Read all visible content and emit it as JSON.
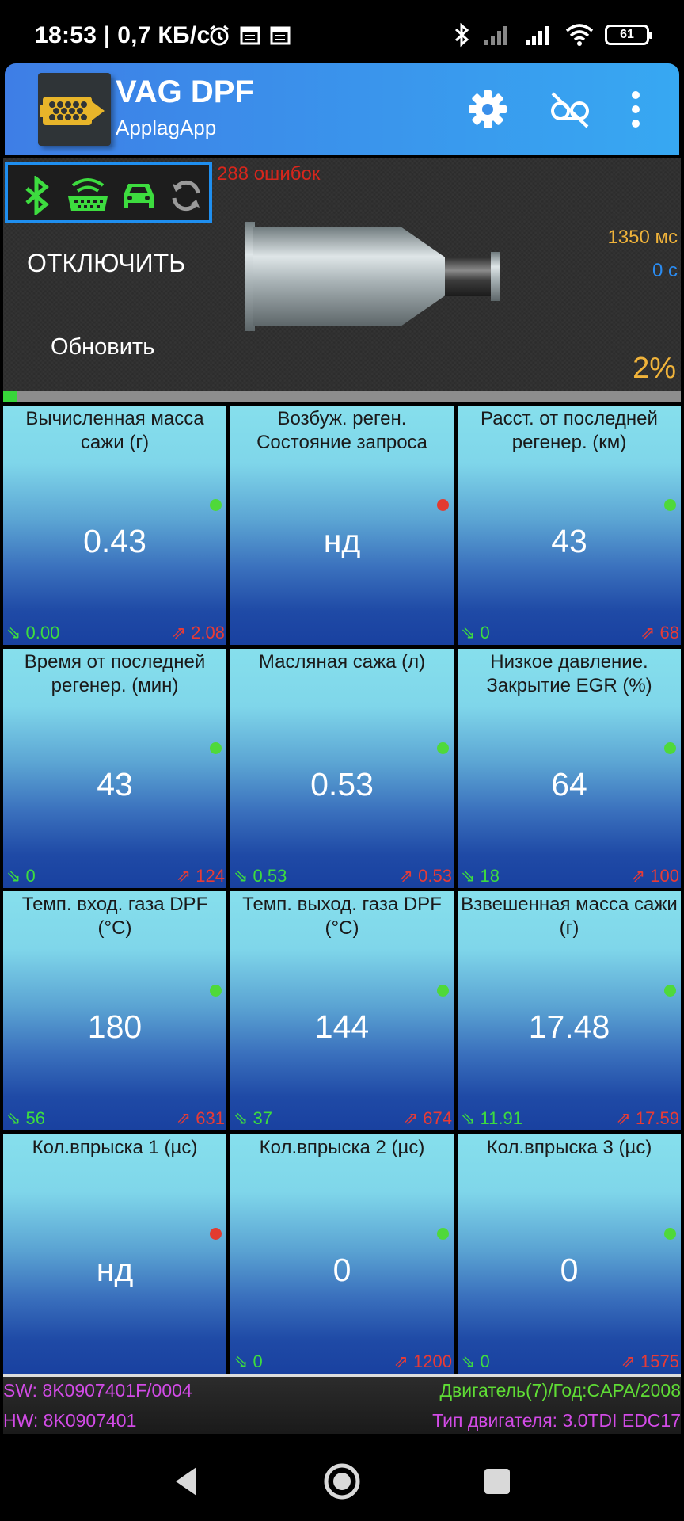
{
  "status_bar": {
    "time": "18:53 | 0,7 КБ/с",
    "battery": "61"
  },
  "app_bar": {
    "title": "VAG DPF",
    "subtitle": "ApplagApp"
  },
  "panel": {
    "errors": "288 ошибок",
    "disconnect": "ОТКЛЮЧИТЬ",
    "refresh": "Обновить",
    "ms": "1350 мс",
    "seconds": "0 с",
    "percent": "2%",
    "progress_fraction": 0.02
  },
  "tiles": [
    {
      "title": "Вычисленная масса сажи (г)",
      "value": "0.43",
      "min": "⇘ 0.00",
      "max": "⇗ 2.08",
      "dot": "#4fd93a"
    },
    {
      "title": "Возбуж. реген. Состояние запроса",
      "value": "нд",
      "min": "",
      "max": "",
      "dot": "#e23b30"
    },
    {
      "title": "Расст. от последней регенер. (км)",
      "value": "43",
      "min": "⇘ 0",
      "max": "⇗ 68",
      "dot": "#4fd93a"
    },
    {
      "title": "Время от последней регенер. (мин)",
      "value": "43",
      "min": "⇘ 0",
      "max": "⇗ 124",
      "dot": "#4fd93a"
    },
    {
      "title": "Масляная сажа (л)",
      "value": "0.53",
      "min": "⇘ 0.53",
      "max": "⇗ 0.53",
      "dot": "#4fd93a"
    },
    {
      "title": "Низкое давление. Закрытие EGR (%)",
      "value": "64",
      "min": "⇘ 18",
      "max": "⇗ 100",
      "dot": "#4fd93a"
    },
    {
      "title": "Темп. вход. газа DPF (°C)",
      "value": "180",
      "min": "⇘ 56",
      "max": "⇗ 631",
      "dot": "#4fd93a"
    },
    {
      "title": "Темп. выход. газа DPF (°C)",
      "value": "144",
      "min": "⇘ 37",
      "max": "⇗ 674",
      "dot": "#4fd93a"
    },
    {
      "title": "Взвешенная масса сажи (г)",
      "value": "17.48",
      "min": "⇘ 11.91",
      "max": "⇗ 17.59",
      "dot": "#4fd93a"
    },
    {
      "title": "Кол.впрыска 1 (µс)",
      "value": "нд",
      "min": "",
      "max": "",
      "dot": "#e23b30"
    },
    {
      "title": "Кол.впрыска 2 (µс)",
      "value": "0",
      "min": "⇘ 0",
      "max": "⇗ 1200",
      "dot": "#4fd93a"
    },
    {
      "title": "Кол.впрыска 3 (µс)",
      "value": "0",
      "min": "⇘ 0",
      "max": "⇗ 1575",
      "dot": "#4fd93a"
    }
  ],
  "footer": {
    "sw": "SW: 8K0907401F/0004",
    "hw": "HW: 8K0907401",
    "engine": "Двигатель(7)/Год:CAPA/2008",
    "engine_type": "Тип двигателя: 3.0TDI EDC17"
  },
  "icons": {
    "status": [
      "bluetooth-icon",
      "obd-adapter-icon",
      "car-icon",
      "sync-icon"
    ],
    "appbar": [
      "settings-gear-icon",
      "no-recording-icon",
      "more-vert-icon"
    ],
    "nav": [
      "back-icon",
      "home-icon",
      "recents-icon"
    ]
  }
}
